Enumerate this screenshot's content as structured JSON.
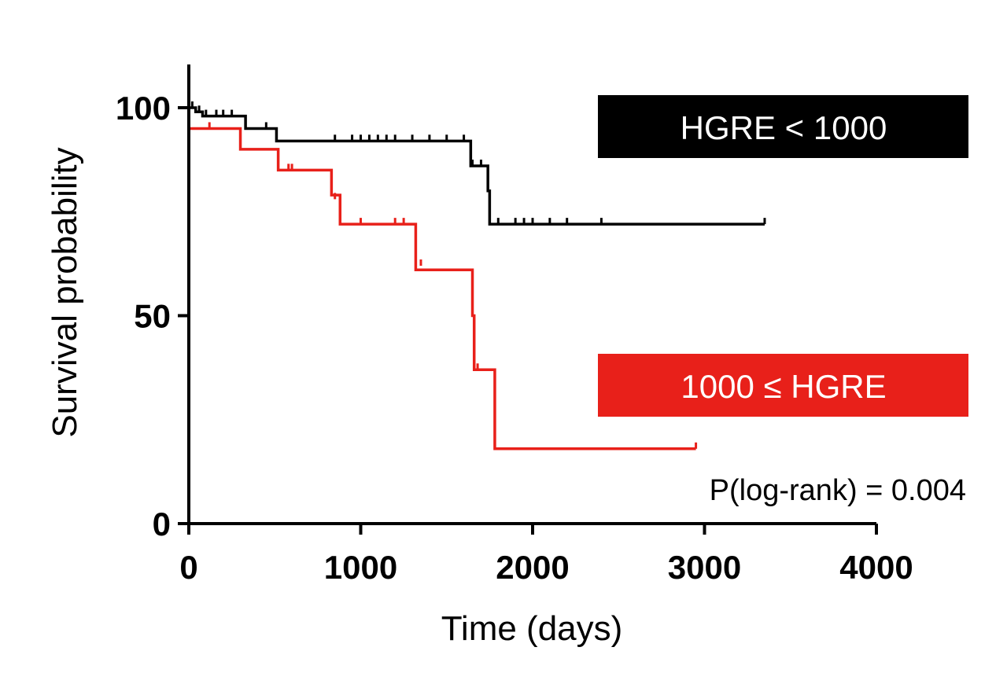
{
  "chart_data": {
    "type": "line",
    "subtype": "kaplan-meier",
    "title": "",
    "xlabel": "Time (days)",
    "ylabel": "Survival probability",
    "xlim": [
      0,
      4000
    ],
    "ylim": [
      0,
      100
    ],
    "xticks": [
      0,
      1000,
      2000,
      3000,
      4000
    ],
    "yticks": [
      0,
      50,
      100
    ],
    "xtick_labels": [
      "0",
      "1000",
      "2000",
      "3000",
      "4000"
    ],
    "ytick_labels": [
      "0",
      "50",
      "100"
    ],
    "grid": false,
    "legend_position": "right",
    "annotation": "P(log-rank) = 0.004",
    "series": [
      {
        "name": "HGRE < 1000",
        "color": "#000000",
        "steps": [
          [
            0,
            100
          ],
          [
            40,
            99
          ],
          [
            80,
            98
          ],
          [
            330,
            95
          ],
          [
            510,
            92
          ],
          [
            1620,
            92
          ],
          [
            1640,
            86
          ],
          [
            1720,
            86
          ],
          [
            1740,
            80
          ],
          [
            1750,
            72
          ],
          [
            3350,
            72
          ]
        ],
        "censored": [
          [
            20,
            100
          ],
          [
            60,
            99
          ],
          [
            100,
            98
          ],
          [
            160,
            98
          ],
          [
            200,
            98
          ],
          [
            250,
            98
          ],
          [
            450,
            95
          ],
          [
            850,
            92
          ],
          [
            950,
            92
          ],
          [
            1000,
            92
          ],
          [
            1050,
            92
          ],
          [
            1100,
            92
          ],
          [
            1150,
            92
          ],
          [
            1200,
            92
          ],
          [
            1300,
            92
          ],
          [
            1400,
            92
          ],
          [
            1500,
            92
          ],
          [
            1600,
            92
          ],
          [
            1650,
            86
          ],
          [
            1700,
            86
          ],
          [
            1800,
            72
          ],
          [
            1900,
            72
          ],
          [
            1950,
            72
          ],
          [
            2000,
            72
          ],
          [
            2100,
            72
          ],
          [
            2200,
            72
          ],
          [
            2400,
            72
          ],
          [
            3350,
            72
          ]
        ]
      },
      {
        "name": "1000 < HGRE",
        "color": "#e8201a",
        "steps": [
          [
            0,
            95
          ],
          [
            300,
            90
          ],
          [
            520,
            85
          ],
          [
            820,
            85
          ],
          [
            830,
            79
          ],
          [
            880,
            72
          ],
          [
            1310,
            72
          ],
          [
            1320,
            61
          ],
          [
            1640,
            61
          ],
          [
            1650,
            50
          ],
          [
            1660,
            37
          ],
          [
            1770,
            37
          ],
          [
            1780,
            18
          ],
          [
            2950,
            18
          ]
        ],
        "censored": [
          [
            120,
            95
          ],
          [
            580,
            85
          ],
          [
            600,
            85
          ],
          [
            850,
            78
          ],
          [
            1000,
            72
          ],
          [
            1200,
            72
          ],
          [
            1250,
            72
          ],
          [
            1350,
            62
          ],
          [
            1680,
            37
          ],
          [
            2950,
            18
          ]
        ]
      }
    ]
  },
  "legend": {
    "group1_label": "HGRE < 1000",
    "group1_bg": "#000000",
    "group2_prefix": "1000 ",
    "group2_symbol": "≤",
    "group2_suffix": " HGRE",
    "group2_bg": "#e8201a"
  }
}
